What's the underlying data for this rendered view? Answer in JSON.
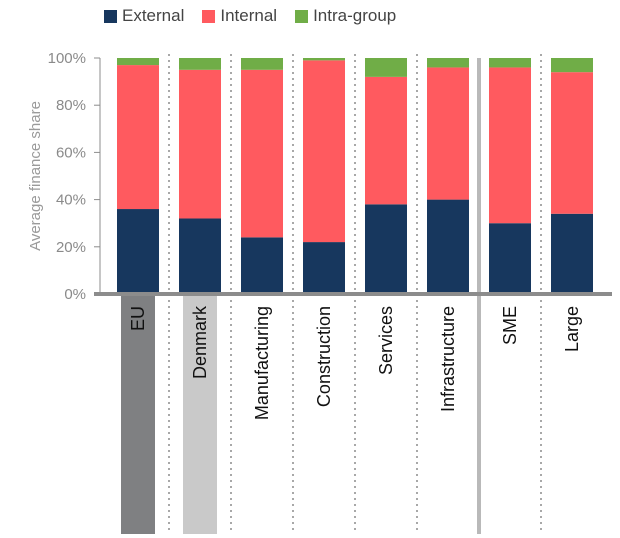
{
  "chart_data": {
    "type": "bar",
    "stacked": true,
    "categories": [
      "EU",
      "Denmark",
      "Manufacturing",
      "Construction",
      "Services",
      "Infrastructure",
      "SME",
      "Large"
    ],
    "series": [
      {
        "name": "External",
        "color": "#17375e",
        "values": [
          36,
          32,
          24,
          22,
          38,
          40,
          30,
          34
        ]
      },
      {
        "name": "Internal",
        "color": "#ff5a5f",
        "values": [
          61,
          63,
          71,
          77,
          54,
          56,
          66,
          60
        ]
      },
      {
        "name": "Intra-group",
        "color": "#70ad47",
        "values": [
          3,
          5,
          5,
          1,
          8,
          4,
          4,
          6
        ]
      }
    ],
    "ylabel": "Average finance  share",
    "xlabel": "",
    "ylim": [
      0,
      100
    ],
    "yticks": [
      "0%",
      "20%",
      "40%",
      "60%",
      "80%",
      "100%"
    ],
    "highlight": {
      "EU": "#7f8082",
      "Denmark": "#c9c9c9"
    },
    "legend_position": "top"
  }
}
